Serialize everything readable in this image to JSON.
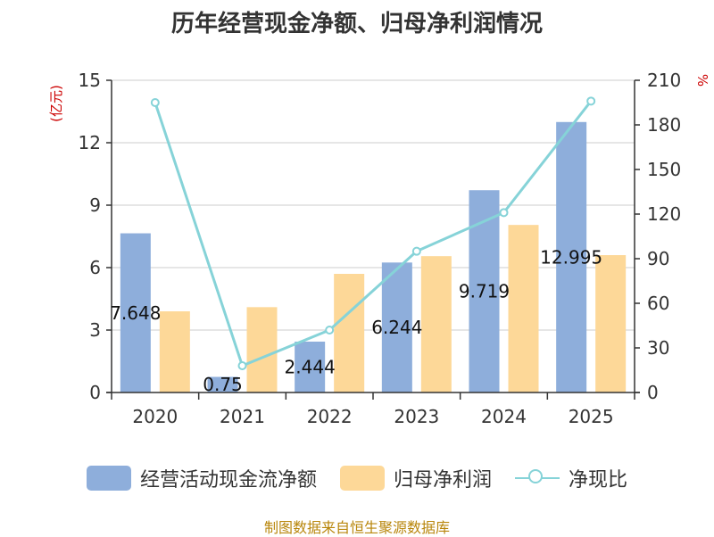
{
  "chart_data": {
    "type": "bar",
    "title": "历年经营现金净额、归母净利润情况",
    "categories": [
      "2020",
      "2021",
      "2022",
      "2023",
      "2024",
      "2025"
    ],
    "left_axis": {
      "unit": "(亿元)",
      "ylim": [
        0,
        15
      ],
      "ticks": [
        0,
        3,
        6,
        9,
        12,
        15
      ]
    },
    "right_axis": {
      "unit": "%",
      "ylim": [
        0,
        210
      ],
      "ticks": [
        0,
        30,
        60,
        90,
        120,
        150,
        180,
        210
      ]
    },
    "series": [
      {
        "name": "经营活动现金流净额",
        "kind": "bar",
        "axis": "left",
        "color": "#8eaedb",
        "values": [
          7.648,
          0.75,
          2.444,
          6.244,
          9.719,
          12.995
        ],
        "labels": [
          "7.648",
          "0.75",
          "2.444",
          "6.244",
          "9.719",
          "12.995"
        ]
      },
      {
        "name": "归母净利润",
        "kind": "bar",
        "axis": "left",
        "color": "#fdd898",
        "values": [
          3.9,
          4.1,
          5.7,
          6.55,
          8.05,
          6.6
        ]
      },
      {
        "name": "净现比",
        "kind": "line",
        "axis": "right",
        "color": "#86d3d8",
        "values": [
          195,
          18,
          42,
          95,
          121,
          196
        ]
      }
    ],
    "grid": true,
    "legend": "bottom-center"
  },
  "source": "制图数据来自恒生聚源数据库"
}
